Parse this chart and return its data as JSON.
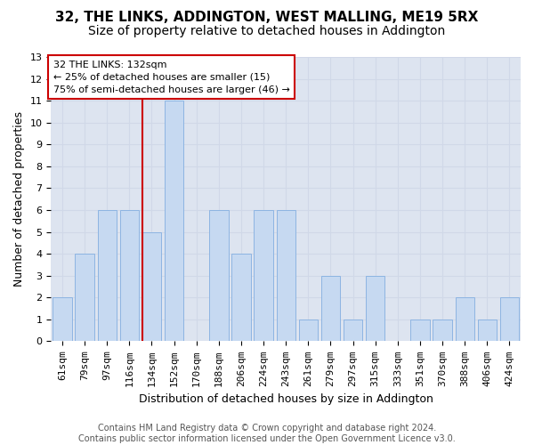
{
  "title": "32, THE LINKS, ADDINGTON, WEST MALLING, ME19 5RX",
  "subtitle": "Size of property relative to detached houses in Addington",
  "xlabel": "Distribution of detached houses by size in Addington",
  "ylabel": "Number of detached properties",
  "categories": [
    "61sqm",
    "79sqm",
    "97sqm",
    "116sqm",
    "134sqm",
    "152sqm",
    "170sqm",
    "188sqm",
    "206sqm",
    "224sqm",
    "243sqm",
    "261sqm",
    "279sqm",
    "297sqm",
    "315sqm",
    "333sqm",
    "351sqm",
    "370sqm",
    "388sqm",
    "406sqm",
    "424sqm"
  ],
  "values": [
    2,
    4,
    6,
    6,
    5,
    11,
    0,
    6,
    4,
    6,
    6,
    1,
    3,
    1,
    3,
    0,
    1,
    1,
    2,
    1,
    2
  ],
  "bar_color": "#c6d9f1",
  "bar_edge_color": "#8db4e2",
  "highlight_line_color": "#cc0000",
  "red_line_x": 3.575,
  "annotation_text": "32 THE LINKS: 132sqm\n← 25% of detached houses are smaller (15)\n75% of semi-detached houses are larger (46) →",
  "annotation_fontsize": 8,
  "annotation_box_color": "#ffffff",
  "annotation_box_edge": "#cc0000",
  "footer_text": "Contains HM Land Registry data © Crown copyright and database right 2024.\nContains public sector information licensed under the Open Government Licence v3.0.",
  "ylim": [
    0,
    13
  ],
  "yticks": [
    0,
    1,
    2,
    3,
    4,
    5,
    6,
    7,
    8,
    9,
    10,
    11,
    12,
    13
  ],
  "grid_color": "#d0d8e8",
  "bg_color": "#dde4f0",
  "title_fontsize": 11,
  "subtitle_fontsize": 10,
  "ylabel_fontsize": 9,
  "xlabel_fontsize": 9,
  "tick_fontsize": 8,
  "footer_fontsize": 7
}
